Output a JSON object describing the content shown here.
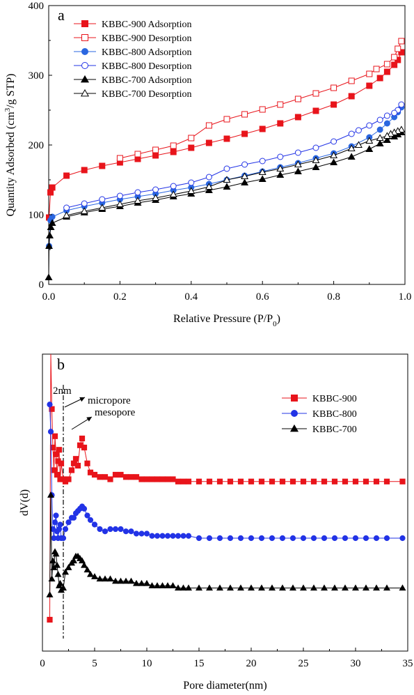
{
  "chart_data": [
    {
      "type": "line",
      "panel_label": "a",
      "xlabel": "Relative Pressure (P/P",
      "xlabel_sub": "0",
      "xlabel_end": ")",
      "ylabel_pre": "Quantity Adsorbed (cm",
      "ylabel_sup": "3",
      "ylabel_post": "/g STP)",
      "xlim": [
        0,
        1
      ],
      "ylim": [
        0,
        400
      ],
      "xticks": [
        0.0,
        0.2,
        0.4,
        0.6,
        0.8,
        1.0
      ],
      "xtick_labels": [
        "0.0",
        "0.2",
        "0.4",
        "0.6",
        "0.8",
        "1.0"
      ],
      "yticks": [
        0,
        100,
        200,
        300,
        400
      ],
      "ytick_labels": [
        "0",
        "100",
        "200",
        "300",
        "400"
      ],
      "legend_position": "top-left",
      "series": [
        {
          "name": "KBBC-900 Adsorption",
          "color": "#e8141b",
          "marker": "square",
          "filled": true,
          "x": [
            0.001,
            0.005,
            0.01,
            0.05,
            0.1,
            0.15,
            0.2,
            0.25,
            0.3,
            0.35,
            0.4,
            0.45,
            0.5,
            0.55,
            0.6,
            0.65,
            0.7,
            0.75,
            0.8,
            0.85,
            0.9,
            0.93,
            0.95,
            0.97,
            0.98,
            0.99
          ],
          "y": [
            96,
            132,
            139,
            156,
            164,
            170,
            175,
            180,
            185,
            190,
            196,
            203,
            209,
            216,
            223,
            231,
            240,
            249,
            258,
            270,
            285,
            296,
            305,
            315,
            322,
            333
          ]
        },
        {
          "name": "KBBC-900 Desorption",
          "color": "#e8141b",
          "marker": "square",
          "filled": false,
          "x": [
            0.99,
            0.98,
            0.97,
            0.95,
            0.92,
            0.9,
            0.85,
            0.8,
            0.75,
            0.7,
            0.65,
            0.6,
            0.55,
            0.5,
            0.45,
            0.4,
            0.35,
            0.3,
            0.25,
            0.2
          ],
          "y": [
            349,
            338,
            326,
            316,
            309,
            302,
            292,
            282,
            274,
            266,
            258,
            251,
            244,
            237,
            228,
            210,
            199,
            193,
            187,
            181
          ]
        },
        {
          "name": "KBBC-800 Adsorption",
          "color": "#2a66e0",
          "marker": "circle",
          "filled": true,
          "x": [
            0.001,
            0.005,
            0.01,
            0.05,
            0.1,
            0.15,
            0.2,
            0.25,
            0.3,
            0.35,
            0.4,
            0.45,
            0.5,
            0.55,
            0.6,
            0.65,
            0.7,
            0.75,
            0.8,
            0.85,
            0.9,
            0.93,
            0.95,
            0.97,
            0.98,
            0.99
          ],
          "y": [
            55,
            92,
            97,
            106,
            112,
            117,
            122,
            126,
            130,
            135,
            139,
            144,
            150,
            156,
            162,
            168,
            174,
            181,
            188,
            198,
            211,
            222,
            231,
            240,
            247,
            254
          ]
        },
        {
          "name": "KBBC-800 Desorption",
          "color": "#2233e6",
          "marker": "circle",
          "filled": false,
          "x": [
            0.99,
            0.98,
            0.97,
            0.95,
            0.93,
            0.9,
            0.87,
            0.85,
            0.8,
            0.75,
            0.7,
            0.65,
            0.6,
            0.55,
            0.5,
            0.45,
            0.4,
            0.35,
            0.3,
            0.25,
            0.2,
            0.15,
            0.1,
            0.05
          ],
          "y": [
            258,
            250,
            246,
            242,
            236,
            228,
            221,
            216,
            205,
            196,
            189,
            183,
            177,
            172,
            166,
            154,
            146,
            141,
            136,
            132,
            127,
            122,
            116,
            110
          ]
        },
        {
          "name": "KBBC-700 Adsorption",
          "color": "#000000",
          "marker": "triangle",
          "filled": true,
          "x": [
            0.0,
            0.001,
            0.003,
            0.006,
            0.01,
            0.05,
            0.1,
            0.15,
            0.2,
            0.25,
            0.3,
            0.35,
            0.4,
            0.45,
            0.5,
            0.55,
            0.6,
            0.65,
            0.7,
            0.75,
            0.8,
            0.85,
            0.9,
            0.93,
            0.95,
            0.97,
            0.98,
            0.99
          ],
          "y": [
            10,
            55,
            70,
            82,
            88,
            97,
            103,
            108,
            112,
            117,
            121,
            126,
            130,
            135,
            140,
            146,
            151,
            157,
            162,
            168,
            175,
            183,
            194,
            202,
            207,
            212,
            215,
            218
          ]
        },
        {
          "name": "KBBC-700 Desorption",
          "color": "#000000",
          "marker": "triangle",
          "filled": false,
          "x": [
            0.99,
            0.98,
            0.97,
            0.96,
            0.95,
            0.93,
            0.9,
            0.87,
            0.85,
            0.8,
            0.75,
            0.7,
            0.65,
            0.6,
            0.55,
            0.5,
            0.45,
            0.4,
            0.35,
            0.3,
            0.25,
            0.2,
            0.15,
            0.1,
            0.05
          ],
          "y": [
            222,
            220,
            218,
            216,
            213,
            210,
            206,
            200,
            195,
            185,
            178,
            172,
            166,
            161,
            155,
            150,
            140,
            134,
            129,
            124,
            120,
            115,
            110,
            105,
            99
          ]
        }
      ]
    },
    {
      "type": "line",
      "panel_label": "b",
      "xlabel": "Pore diameter(nm)",
      "ylabel": "dV(d)",
      "xlim": [
        0,
        35
      ],
      "ylim": [
        0,
        100
      ],
      "xticks": [
        0,
        5,
        10,
        15,
        20,
        25,
        30,
        35
      ],
      "xtick_labels": [
        "0",
        "5",
        "10",
        "15",
        "20",
        "25",
        "30",
        "35"
      ],
      "yticks": [],
      "legend_position": "top-right",
      "annotations": {
        "label_2nm": "2nm",
        "label_micropore": "micropore",
        "label_mesopore": "mesopore",
        "divider_x": 2
      },
      "series": [
        {
          "name": "KBBC-900",
          "color": "#e8141b",
          "marker": "square",
          "x": [
            0.7,
            0.8,
            0.9,
            1.0,
            1.1,
            1.2,
            1.3,
            1.4,
            1.5,
            1.6,
            1.7,
            1.8,
            2.0,
            2.2,
            2.5,
            2.8,
            3.0,
            3.2,
            3.4,
            3.6,
            3.8,
            4.0,
            4.3,
            4.6,
            5.0,
            5.5,
            6.0,
            6.5,
            7.0,
            7.5,
            8.0,
            8.5,
            9.0,
            9.5,
            10,
            10.5,
            11,
            11.5,
            12,
            12.5,
            13,
            13.5,
            14,
            15,
            16,
            17,
            18,
            19,
            20,
            21,
            22,
            23,
            24,
            25,
            26,
            27,
            28,
            29,
            30,
            31,
            32,
            33,
            34.5
          ],
          "y": [
            0,
            120,
            93,
            76,
            66,
            81,
            73,
            64,
            70,
            75,
            62,
            69,
            62,
            61,
            62,
            66,
            69,
            71,
            68,
            77,
            80,
            76,
            69,
            65,
            64,
            63,
            63,
            62,
            64,
            64,
            63,
            63,
            63,
            62,
            62,
            62,
            62,
            62,
            62,
            62,
            61,
            61,
            61,
            61,
            61,
            61,
            61,
            61,
            61,
            61,
            61,
            61,
            61,
            61,
            61,
            61,
            61,
            61,
            61,
            61,
            61,
            61,
            61
          ]
        },
        {
          "name": "KBBC-800",
          "color": "#2233e6",
          "marker": "circle",
          "x": [
            0.7,
            0.8,
            0.9,
            1.0,
            1.1,
            1.2,
            1.3,
            1.4,
            1.5,
            1.6,
            1.7,
            1.8,
            2.0,
            2.2,
            2.5,
            2.8,
            3.0,
            3.2,
            3.4,
            3.6,
            3.8,
            4.0,
            4.3,
            4.6,
            5.0,
            5.5,
            6.0,
            6.5,
            7.0,
            7.5,
            8.0,
            8.5,
            9.0,
            9.5,
            10,
            10.5,
            11,
            11.5,
            12,
            12.5,
            13,
            13.5,
            14,
            15,
            16,
            17,
            18,
            19,
            20,
            21,
            22,
            23,
            24,
            25,
            26,
            27,
            28,
            29,
            30,
            31,
            32,
            33,
            34.5
          ],
          "y": [
            95,
            83,
            55,
            40,
            36,
            43,
            46,
            39,
            36,
            40,
            42,
            36,
            36,
            40,
            43,
            45,
            45,
            47,
            48,
            49,
            50,
            49,
            46,
            44,
            42,
            40,
            39,
            40,
            40,
            40,
            39,
            39,
            38,
            38,
            38,
            37,
            37,
            37,
            37,
            37,
            37,
            37,
            37,
            36,
            36,
            36,
            36,
            36,
            36,
            36,
            36,
            36,
            36,
            36,
            36,
            36,
            36,
            36,
            36,
            36,
            36,
            36,
            36
          ]
        },
        {
          "name": "KBBC-700",
          "color": "#000000",
          "marker": "triangle",
          "x": [
            0.7,
            0.8,
            0.9,
            1.0,
            1.1,
            1.2,
            1.3,
            1.4,
            1.5,
            1.6,
            1.7,
            1.8,
            2.0,
            2.2,
            2.5,
            2.8,
            3.0,
            3.2,
            3.4,
            3.6,
            3.8,
            4.0,
            4.3,
            4.6,
            5.0,
            5.5,
            6.0,
            6.5,
            7.0,
            7.5,
            8.0,
            8.5,
            9.0,
            9.5,
            10,
            10.5,
            11,
            11.5,
            12,
            12.5,
            13,
            13.5,
            14,
            15,
            16,
            17,
            18,
            19,
            20,
            21,
            22,
            23,
            24,
            25,
            26,
            27,
            28,
            29,
            30,
            31,
            32,
            33,
            34.5
          ],
          "y": [
            11,
            55,
            18,
            26,
            23,
            30,
            29,
            24,
            20,
            15,
            16,
            13,
            14,
            21,
            23,
            25,
            26,
            28,
            28,
            27,
            26,
            24,
            22,
            20,
            19,
            18,
            18,
            18,
            17,
            17,
            17,
            17,
            16,
            16,
            16,
            15,
            15,
            15,
            15,
            15,
            14,
            14,
            14,
            14,
            14,
            14,
            14,
            14,
            14,
            14,
            14,
            14,
            14,
            14,
            14,
            14,
            14,
            14,
            14,
            14,
            14,
            14,
            14
          ]
        }
      ]
    }
  ]
}
